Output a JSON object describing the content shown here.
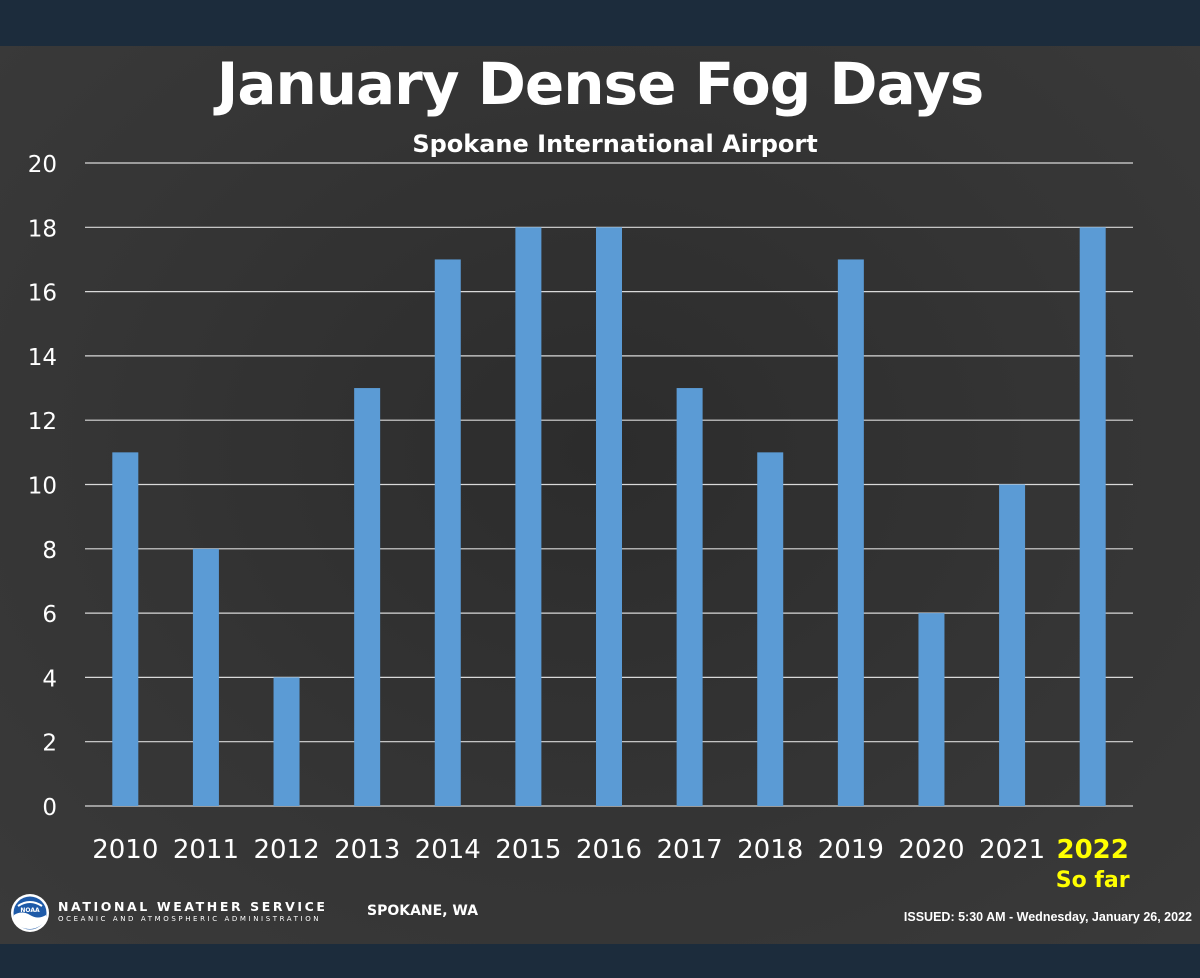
{
  "chart_data": {
    "type": "bar",
    "title": "January Dense Fog Days",
    "subtitle": "Spokane International Airport",
    "categories": [
      "2010",
      "2011",
      "2012",
      "2013",
      "2014",
      "2015",
      "2016",
      "2017",
      "2018",
      "2019",
      "2020",
      "2021",
      "2022"
    ],
    "category_notes": {
      "2022": "So far"
    },
    "highlight_category": "2022",
    "values": [
      11,
      8,
      4,
      13,
      17,
      18,
      18,
      13,
      11,
      17,
      6,
      10,
      18
    ],
    "ylim": [
      0,
      20
    ],
    "yticks": [
      0,
      2,
      4,
      6,
      8,
      10,
      12,
      14,
      16,
      18,
      20
    ],
    "xlabel": "",
    "ylabel": "",
    "grid": true,
    "colors": {
      "bar": "#5b9bd5",
      "highlight_label": "#ffff00",
      "grid": "#d9d9d9",
      "text": "#ffffff"
    }
  },
  "footer": {
    "agency": "NATIONAL WEATHER SERVICE",
    "agency_sub": "OCEANIC AND ATMOSPHERIC ADMINISTRATION",
    "office": "SPOKANE, WA",
    "issued": "ISSUED: 5:30 AM - Wednesday,  January 26, 2022",
    "logo_text": "NOAA",
    "logo_icon": "noaa-logo-icon"
  }
}
